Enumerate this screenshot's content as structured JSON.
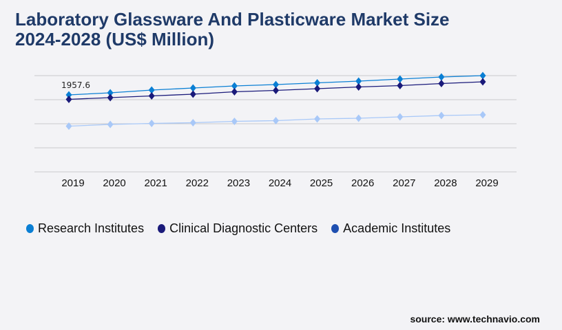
{
  "title_line1": "Laboratory Glassware And Plasticware Market Size",
  "title_line2": "2024-2028 (US$ Million)",
  "source": "source: www.technavio.com",
  "chart_data": {
    "type": "line",
    "categories": [
      "2019",
      "2020",
      "2021",
      "2022",
      "2023",
      "2024",
      "2025",
      "2026",
      "2027",
      "2028",
      "2029"
    ],
    "ylim": [
      0,
      2447
    ],
    "grid": true,
    "legend_placement": "bottom",
    "annotations": [
      {
        "series": 0,
        "index": 0,
        "text": "1957.6"
      }
    ],
    "series": [
      {
        "name": "Research Institutes",
        "color": "#0a7fd4",
        "marker_color": "#0a7fd4",
        "legend_color": "#0a7fd4",
        "values": [
          1957.6,
          2010,
          2080,
          2133,
          2185,
          2220,
          2264,
          2307,
          2360,
          2412,
          2447
        ]
      },
      {
        "name": "Clinical Diagnostic Centers",
        "color": "#1a1a7a",
        "marker_color": "#1a1a7a",
        "legend_color": "#1a1a7a",
        "values": [
          1844,
          1888,
          1932,
          1975,
          2036,
          2071,
          2115,
          2159,
          2194,
          2246,
          2290
        ]
      },
      {
        "name": "Academic Institutes",
        "color": "#a8c8f8",
        "marker_color": "#a8c8f8",
        "legend_color": "#1e4fb0",
        "values": [
          1162,
          1206,
          1232,
          1250,
          1285,
          1302,
          1346,
          1363,
          1398,
          1433,
          1451
        ]
      }
    ]
  }
}
